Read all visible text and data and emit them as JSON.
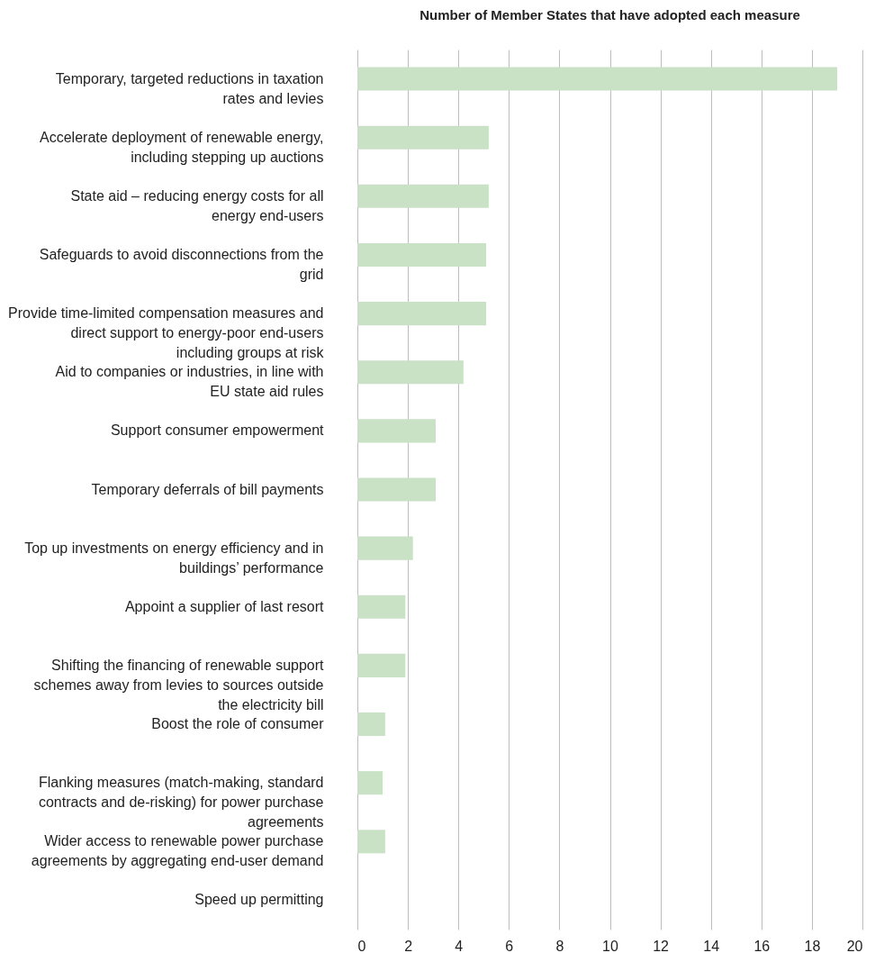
{
  "chart_data": {
    "type": "bar",
    "orientation": "horizontal",
    "title": "Number of Member States that have adopted each measure",
    "categories": [
      "Temporary, targeted reductions in taxation rates and levies",
      "Accelerate deployment of renewable energy, including stepping up auctions",
      "State aid – reducing energy costs for all energy end-users",
      "Safeguards to avoid disconnections from the grid",
      "Provide time-limited compensation measures and direct support to energy-poor end-users including groups at risk",
      "Aid to companies or industries, in line with EU state aid rules",
      "Support consumer empowerment",
      "Temporary deferrals of bill payments",
      "Top up investments on energy efficiency and in buildings’ performance",
      "Appoint a supplier of last resort",
      "Shifting the financing of renewable support schemes away from levies to sources outside the electricity bill",
      "Boost the role of consumer",
      "Flanking measures (match-making, standard contracts and de-risking) for power purchase agreements",
      "Wider access to renewable power purchase agreements by aggregating end-user demand",
      "Speed up permitting"
    ],
    "values": [
      19,
      5.2,
      5.2,
      5.1,
      5.1,
      4.2,
      3.1,
      3.1,
      2.2,
      1.9,
      1.9,
      1.1,
      1.0,
      1.1,
      0
    ],
    "color": "#c9e1c5",
    "xlim": [
      0,
      20
    ],
    "xticks": [
      0,
      2,
      4,
      6,
      8,
      10,
      12,
      14,
      16,
      18,
      20
    ],
    "grid": "x"
  }
}
